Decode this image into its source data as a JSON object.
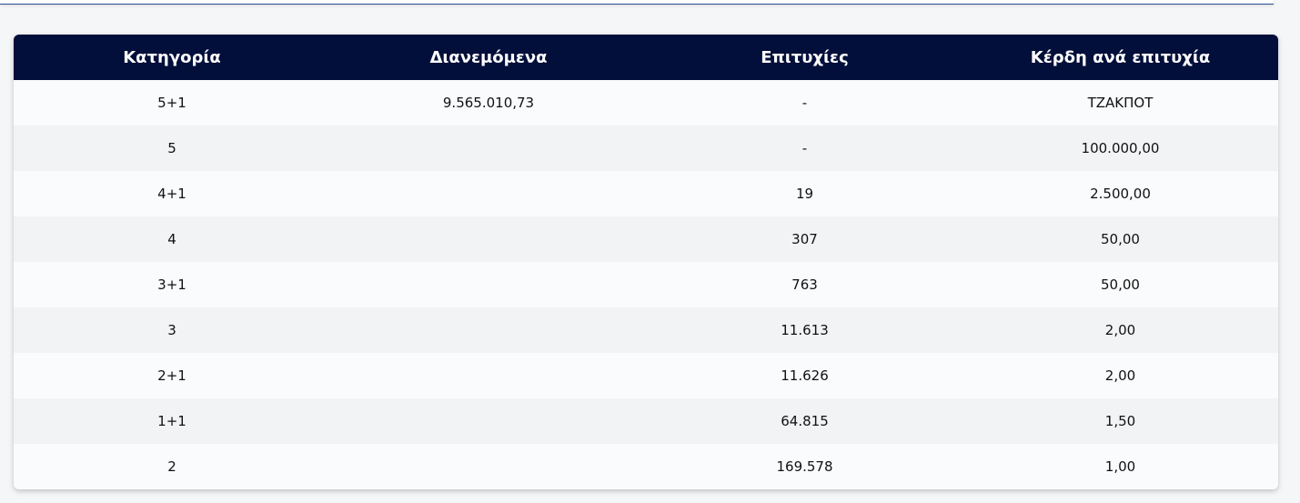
{
  "table": {
    "headers": [
      "Κατηγορία",
      "Διανεμόμενα",
      "Επιτυχίες",
      "Κέρδη ανά επιτυχία"
    ],
    "rows": [
      [
        "5+1",
        "9.565.010,73",
        "-",
        "ΤΖΑΚΠΟΤ"
      ],
      [
        "5",
        "",
        "-",
        "100.000,00"
      ],
      [
        "4+1",
        "",
        "19",
        "2.500,00"
      ],
      [
        "4",
        "",
        "307",
        "50,00"
      ],
      [
        "3+1",
        "",
        "763",
        "50,00"
      ],
      [
        "3",
        "",
        "11.613",
        "2,00"
      ],
      [
        "2+1",
        "",
        "11.626",
        "2,00"
      ],
      [
        "1+1",
        "",
        "64.815",
        "1,50"
      ],
      [
        "2",
        "",
        "169.578",
        "1,00"
      ]
    ]
  },
  "colors": {
    "header_bg": "#020f3a",
    "header_text": "#ffffff",
    "row_odd": "#fafbfd",
    "row_even": "#f2f3f5"
  }
}
